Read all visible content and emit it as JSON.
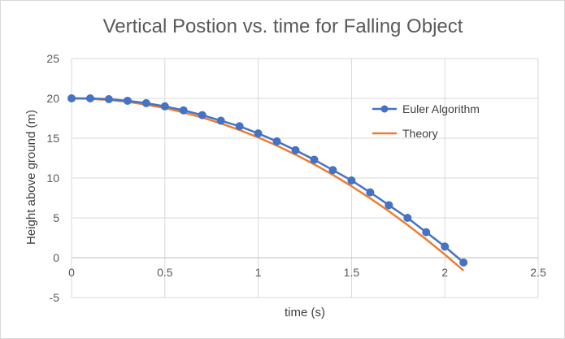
{
  "chart_data": {
    "type": "line",
    "title": "Vertical Postion vs. time for Falling Object",
    "xlabel": "time (s)",
    "ylabel": "Height above ground (m)",
    "xlim": [
      0,
      2.5
    ],
    "ylim": [
      -5,
      25
    ],
    "xticks": [
      "0",
      "0.5",
      "1",
      "1.5",
      "2",
      "2.5"
    ],
    "yticks": [
      "-5",
      "0",
      "5",
      "10",
      "15",
      "20",
      "25"
    ],
    "grid": true,
    "legend_position": "right",
    "series": [
      {
        "name": "Euler Algorithm",
        "color": "#4472c4",
        "marker": "circle",
        "x": [
          0,
          0.1,
          0.2,
          0.3,
          0.4,
          0.5,
          0.6,
          0.7,
          0.8,
          0.9,
          1.0,
          1.1,
          1.2,
          1.3,
          1.4,
          1.5,
          1.6,
          1.7,
          1.8,
          1.9,
          2.0,
          2.1
        ],
        "y": [
          20.0,
          20.0,
          19.9,
          19.7,
          19.4,
          19.0,
          18.5,
          17.9,
          17.2,
          16.5,
          15.6,
          14.6,
          13.5,
          12.3,
          11.0,
          9.7,
          8.2,
          6.6,
          5.0,
          3.2,
          1.4,
          -0.6
        ]
      },
      {
        "name": "Theory",
        "color": "#ed7d31",
        "marker": "none",
        "x": [
          0,
          0.1,
          0.2,
          0.3,
          0.4,
          0.5,
          0.6,
          0.7,
          0.8,
          0.9,
          1.0,
          1.1,
          1.2,
          1.3,
          1.4,
          1.5,
          1.6,
          1.7,
          1.8,
          1.9,
          2.0,
          2.1
        ],
        "y": [
          20.0,
          19.95,
          19.8,
          19.56,
          19.22,
          18.78,
          18.24,
          17.6,
          16.86,
          16.03,
          15.1,
          14.07,
          12.94,
          11.72,
          10.4,
          8.98,
          7.46,
          5.84,
          4.12,
          2.31,
          0.4,
          -1.61
        ]
      }
    ]
  }
}
